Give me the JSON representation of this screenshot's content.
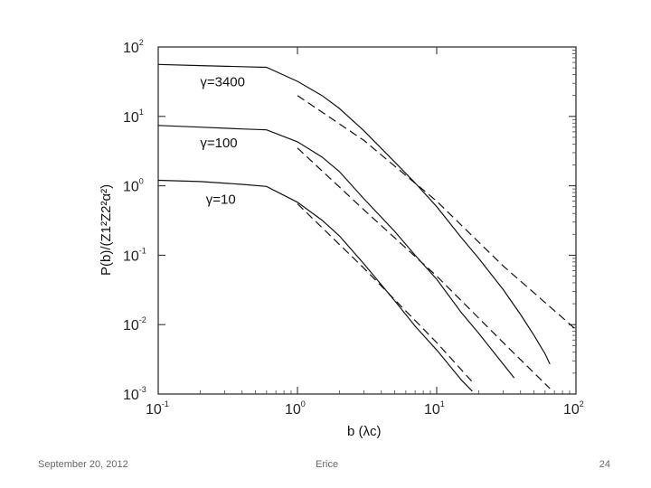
{
  "footer": {
    "date": "September 20, 2012",
    "center": "Erice",
    "page": "24"
  },
  "chart_data": {
    "type": "line",
    "title": "",
    "xlabel": "b (λc)",
    "ylabel": "P(b)/(Z1²Z2²α²)",
    "x_scale": "log",
    "y_scale": "log",
    "xlim": [
      0.1,
      100
    ],
    "ylim": [
      0.001,
      100
    ],
    "grid": false,
    "x_ticks": [
      {
        "base": "10",
        "exp": "-1",
        "value": 0.1
      },
      {
        "base": "10",
        "exp": "0",
        "value": 1
      },
      {
        "base": "10",
        "exp": "1",
        "value": 10
      },
      {
        "base": "10",
        "exp": "2",
        "value": 100
      }
    ],
    "y_ticks": [
      {
        "base": "10",
        "exp": "2",
        "value": 100
      },
      {
        "base": "10",
        "exp": "1",
        "value": 10
      },
      {
        "base": "10",
        "exp": "0",
        "value": 1
      },
      {
        "base": "10",
        "exp": "-1",
        "value": 0.1
      },
      {
        "base": "10",
        "exp": "-2",
        "value": 0.01
      },
      {
        "base": "10",
        "exp": "-3",
        "value": 0.001
      }
    ],
    "annotations": [
      {
        "text": "γ=3400",
        "x": 0.2,
        "y": 27
      },
      {
        "text": "γ=100",
        "x": 0.2,
        "y": 3.6
      },
      {
        "text": "γ=10",
        "x": 0.22,
        "y": 0.55
      }
    ],
    "series": [
      {
        "style": "solid",
        "x": [
          0.1,
          0.2,
          0.4,
          0.6,
          1.0,
          1.5,
          2.0,
          3.0,
          5.0,
          7.0,
          10,
          15,
          20,
          30,
          40,
          50,
          60,
          65
        ],
        "y": [
          56,
          54,
          52,
          51,
          32,
          20,
          13,
          6.2,
          2.2,
          1.1,
          0.5,
          0.18,
          0.09,
          0.032,
          0.014,
          0.007,
          0.0038,
          0.0027
        ]
      },
      {
        "style": "solid",
        "x": [
          0.1,
          0.2,
          0.4,
          0.6,
          1.0,
          1.5,
          2.0,
          3.0,
          5.0,
          7.0,
          10,
          15,
          20,
          30,
          36
        ],
        "y": [
          7.4,
          7.0,
          6.6,
          6.4,
          4.3,
          2.6,
          1.6,
          0.65,
          0.22,
          0.1,
          0.045,
          0.015,
          0.0075,
          0.0027,
          0.0017
        ]
      },
      {
        "style": "solid",
        "x": [
          0.1,
          0.2,
          0.4,
          0.6,
          1.0,
          1.5,
          2.0,
          3.0,
          5.0,
          7.0,
          10,
          15,
          18
        ],
        "y": [
          1.2,
          1.15,
          1.05,
          0.98,
          0.58,
          0.32,
          0.19,
          0.075,
          0.022,
          0.0095,
          0.0043,
          0.0016,
          0.0011
        ]
      },
      {
        "style": "dashed",
        "x": [
          1.0,
          3.0,
          10,
          30,
          100
        ],
        "y": [
          20,
          4.5,
          0.6,
          0.07,
          0.0085
        ]
      },
      {
        "style": "dashed",
        "x": [
          1.0,
          3.0,
          10,
          30,
          65
        ],
        "y": [
          3.5,
          0.45,
          0.05,
          0.0055,
          0.0012
        ]
      },
      {
        "style": "dashed",
        "x": [
          1.0,
          3.0,
          10,
          18
        ],
        "y": [
          0.55,
          0.065,
          0.0055,
          0.0015
        ]
      }
    ]
  }
}
